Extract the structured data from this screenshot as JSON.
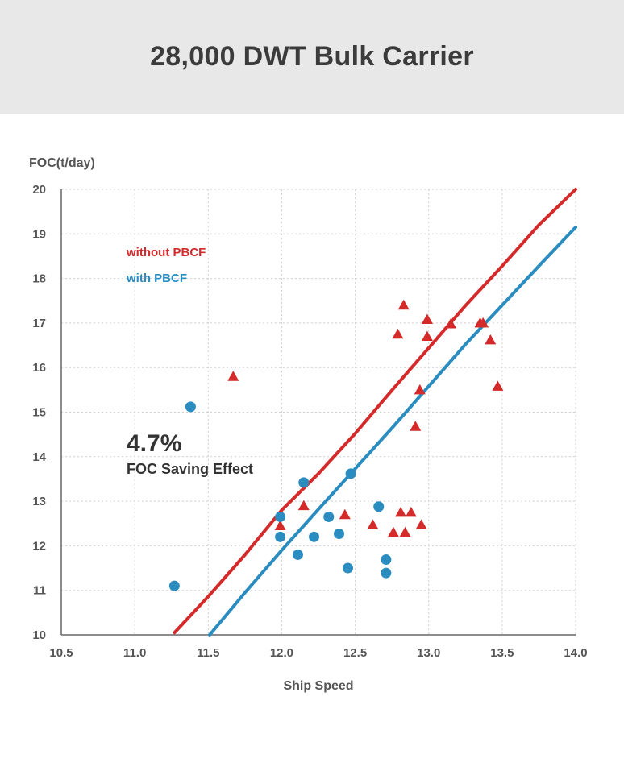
{
  "header": {
    "title": "28,000 DWT Bulk Carrier"
  },
  "chart_data": {
    "type": "scatter",
    "title": "28,000 DWT Bulk Carrier",
    "xlabel": "Ship Speed",
    "ylabel": "FOC(t/day)",
    "xlim": [
      10.5,
      14.0
    ],
    "ylim": [
      10,
      20
    ],
    "xticks": [
      "10.5",
      "11.0",
      "11.5",
      "12.0",
      "12.5",
      "13.0",
      "13.5",
      "14.0"
    ],
    "yticks": [
      "10",
      "11",
      "12",
      "13",
      "14",
      "15",
      "16",
      "17",
      "18",
      "19",
      "20"
    ],
    "grid": true,
    "legend_position": "top-left",
    "colors": {
      "without": "#d42a2a",
      "with": "#2b8cc0"
    },
    "series": [
      {
        "name": "without PBCF",
        "marker": "triangle",
        "color": "#d42a2a",
        "points": [
          [
            11.67,
            15.8
          ],
          [
            11.99,
            12.45
          ],
          [
            12.15,
            12.9
          ],
          [
            12.43,
            12.7
          ],
          [
            12.62,
            12.47
          ],
          [
            12.79,
            16.75
          ],
          [
            12.81,
            12.75
          ],
          [
            12.83,
            17.4
          ],
          [
            12.88,
            12.75
          ],
          [
            12.76,
            12.3
          ],
          [
            12.84,
            12.3
          ],
          [
            12.91,
            14.68
          ],
          [
            12.94,
            15.5
          ],
          [
            12.95,
            12.47
          ],
          [
            12.99,
            17.08
          ],
          [
            12.99,
            16.7
          ],
          [
            13.15,
            16.98
          ],
          [
            13.35,
            17.0
          ],
          [
            13.37,
            17.0
          ],
          [
            13.42,
            16.62
          ],
          [
            13.47,
            15.58
          ]
        ],
        "fit": [
          [
            11.27,
            10.05
          ],
          [
            11.5,
            10.86
          ],
          [
            11.75,
            11.8
          ],
          [
            12.0,
            12.8
          ],
          [
            12.25,
            13.62
          ],
          [
            12.5,
            14.52
          ],
          [
            12.75,
            15.49
          ],
          [
            13.0,
            16.44
          ],
          [
            13.25,
            17.39
          ],
          [
            13.5,
            18.28
          ],
          [
            13.75,
            19.2
          ],
          [
            14.0,
            20.0
          ]
        ]
      },
      {
        "name": "with PBCF",
        "marker": "circle",
        "color": "#2b8cc0",
        "points": [
          [
            11.27,
            11.1
          ],
          [
            11.38,
            15.12
          ],
          [
            11.99,
            12.65
          ],
          [
            11.99,
            12.2
          ],
          [
            12.11,
            11.8
          ],
          [
            12.15,
            13.42
          ],
          [
            12.22,
            12.2
          ],
          [
            12.32,
            12.65
          ],
          [
            12.39,
            12.27
          ],
          [
            12.45,
            11.5
          ],
          [
            12.47,
            13.62
          ],
          [
            12.66,
            12.88
          ],
          [
            12.71,
            11.69
          ],
          [
            12.71,
            11.39
          ]
        ],
        "fit": [
          [
            11.51,
            10.0
          ],
          [
            11.75,
            10.95
          ],
          [
            12.0,
            11.9
          ],
          [
            12.25,
            12.82
          ],
          [
            12.5,
            13.73
          ],
          [
            12.75,
            14.64
          ],
          [
            13.0,
            15.58
          ],
          [
            13.25,
            16.52
          ],
          [
            13.5,
            17.4
          ],
          [
            13.75,
            18.28
          ],
          [
            14.0,
            19.15
          ]
        ]
      }
    ],
    "annotations": [
      {
        "text": "4.7%"
      },
      {
        "text": "FOC Saving Effect"
      }
    ]
  }
}
